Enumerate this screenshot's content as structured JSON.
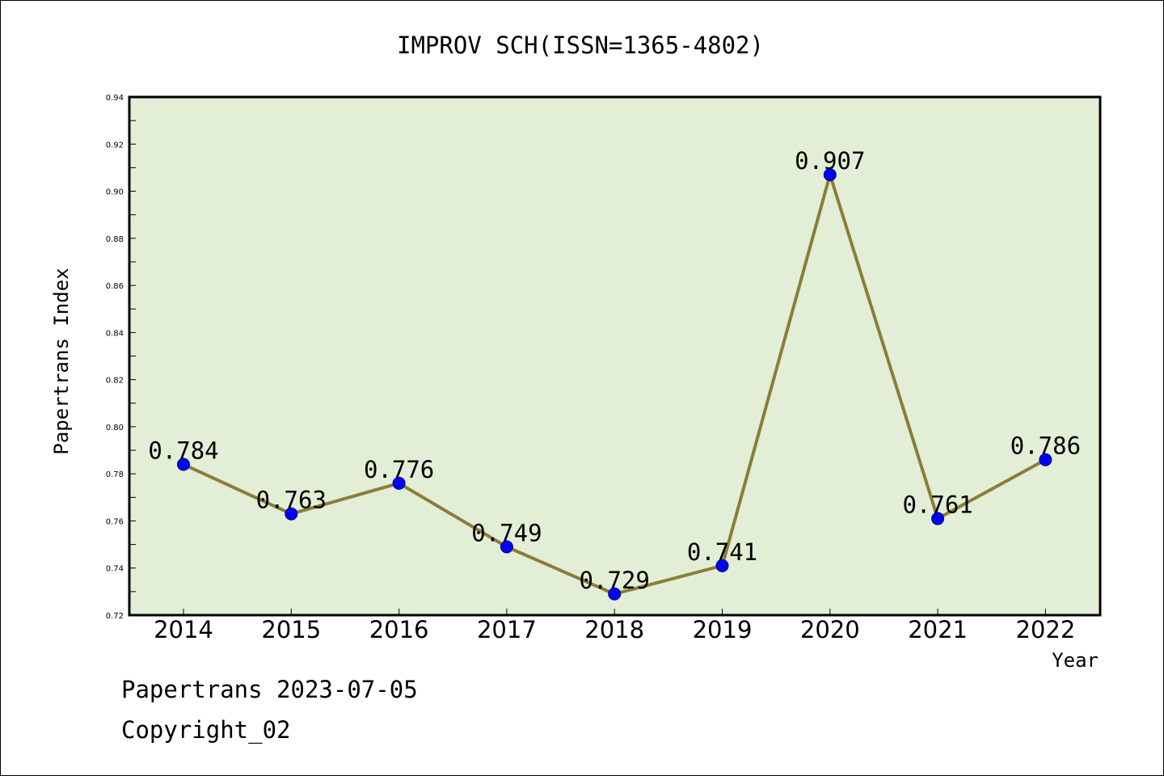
{
  "chart_data": {
    "type": "line",
    "title": "IMPROV SCH(ISSN=1365-4802)",
    "xlabel": "Year",
    "ylabel": "Papertrans Index",
    "categories": [
      "2014",
      "2015",
      "2016",
      "2017",
      "2018",
      "2019",
      "2020",
      "2021",
      "2022"
    ],
    "values": [
      0.784,
      0.763,
      0.776,
      0.749,
      0.729,
      0.741,
      0.907,
      0.761,
      0.786
    ],
    "data_labels": [
      "0.784",
      "0.763",
      "0.776",
      "0.749",
      "0.729",
      "0.741",
      "0.907",
      "0.761",
      "0.786"
    ],
    "ylim": [
      0.72,
      0.94
    ],
    "yticks": [
      "0.72",
      "0.74",
      "0.76",
      "0.78",
      "0.80",
      "0.82",
      "0.84",
      "0.86",
      "0.88",
      "0.90",
      "0.92",
      "0.94"
    ],
    "grid": false,
    "legend": "none",
    "colors": {
      "plot_background": "#e2efd6",
      "line": "#8b7d3a",
      "marker": "#0000ff"
    }
  },
  "footer": {
    "line1": "Papertrans 2023-07-05",
    "line2": "Copyright_02"
  }
}
